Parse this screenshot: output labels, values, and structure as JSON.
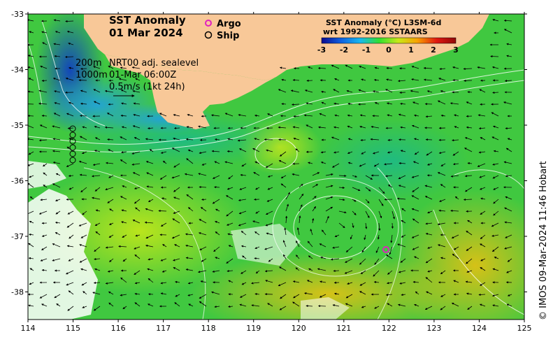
{
  "map": {
    "title_line1": "SST Anomaly",
    "title_line2": "01 Mar 2024",
    "legend": {
      "argo_label": "Argo",
      "ship_label": "Ship",
      "argo_color": "#e020c0",
      "ship_color": "#000000"
    },
    "notes": {
      "depth_200": "200m",
      "depth_1000": "1000m",
      "product": "NRT00 adj. sealevel",
      "datetime": "01-Mar 06:00Z",
      "scale": "0.5m/s (1kt 24h)"
    },
    "colorbar": {
      "title_line1": "SST Anomaly (°C) L3SM-6d",
      "title_line2": "wrt 1992-2016 SSTAARS",
      "ticks": [
        "-3",
        "-2",
        "-1",
        "0",
        "1",
        "2",
        "3"
      ],
      "colors": [
        "#0a0a90",
        "#1060e0",
        "#18b8f0",
        "#30e030",
        "#c8e818",
        "#f8a000",
        "#e01810",
        "#900808"
      ]
    },
    "x_ticks": [
      "114",
      "115",
      "116",
      "117",
      "118",
      "119",
      "120",
      "121",
      "122",
      "123",
      "124",
      "125"
    ],
    "y_ticks": [
      "-33",
      "-34",
      "-35",
      "-36",
      "-37",
      "-38"
    ],
    "credit": "© IMOS 09-Mar-2024 11:46 Hobart",
    "land_color": "#f8c898",
    "ocean_color": "#40c840"
  }
}
